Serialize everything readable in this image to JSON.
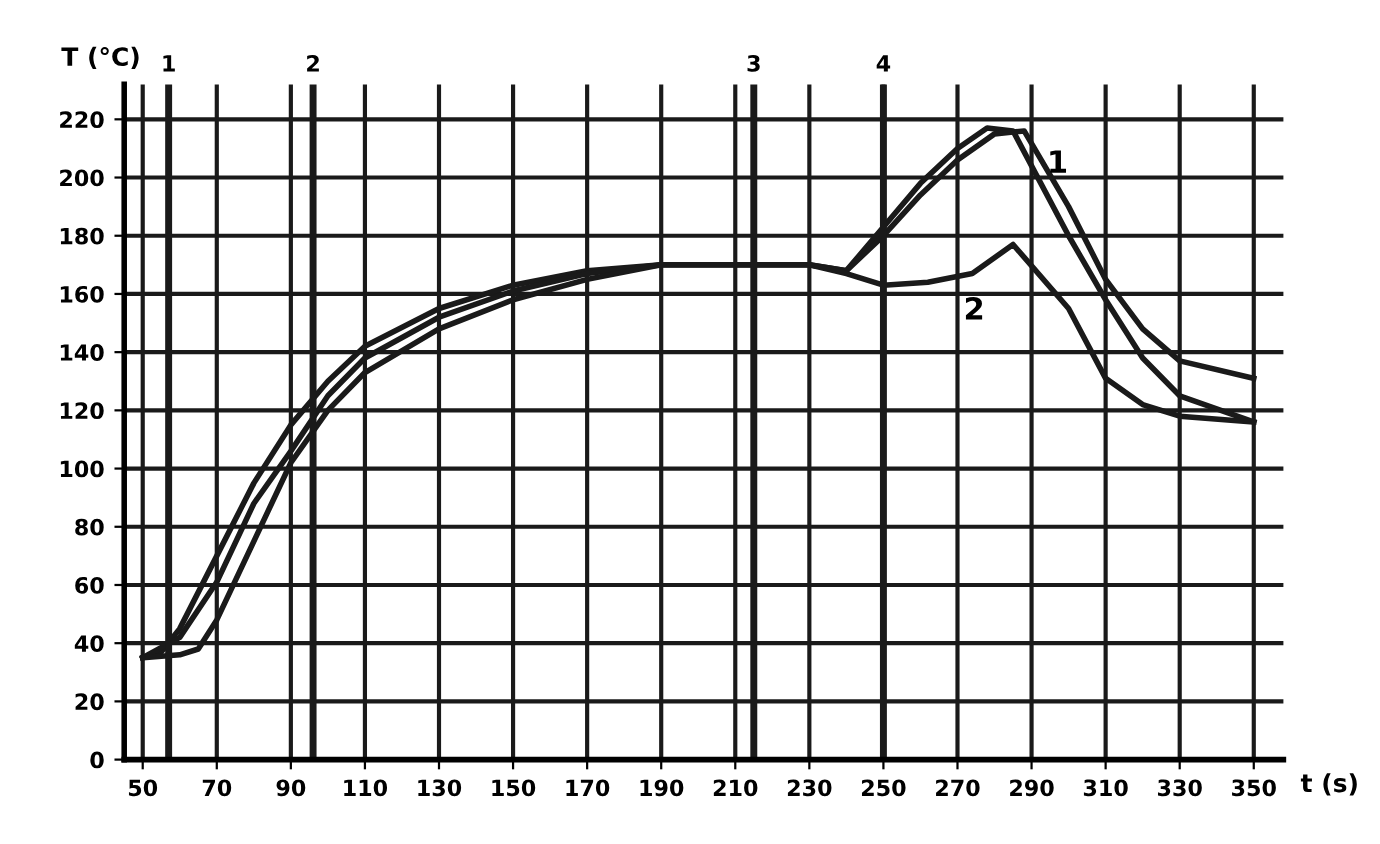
{
  "chart_data": {
    "type": "line",
    "xlabel": "t (s)",
    "ylabel": "T (°C)",
    "xlim": [
      45,
      358
    ],
    "ylim": [
      0,
      232
    ],
    "xticks": [
      50,
      70,
      90,
      110,
      130,
      150,
      170,
      190,
      210,
      230,
      250,
      270,
      290,
      310,
      330,
      350
    ],
    "yticks": [
      0,
      20,
      40,
      60,
      80,
      100,
      120,
      140,
      160,
      180,
      200,
      220
    ],
    "grid": true,
    "marker": "none",
    "line_style": "solid",
    "series": [
      {
        "color": "#1a1a1a",
        "x": [
          50,
          55,
          60,
          70,
          80,
          90,
          100,
          110,
          130,
          150,
          170,
          190,
          210,
          230,
          240,
          250,
          260,
          270,
          278,
          285,
          300,
          310,
          320,
          330,
          350
        ],
        "values": [
          35,
          37,
          45,
          70,
          95,
          115,
          130,
          142,
          155,
          163,
          168,
          170,
          170,
          170,
          168,
          183,
          198,
          210,
          217,
          216,
          180,
          158,
          138,
          125,
          116
        ]
      },
      {
        "color": "#1a1a1a",
        "x": [
          50,
          60,
          70,
          80,
          90,
          100,
          110,
          130,
          150,
          170,
          190,
          210,
          230,
          240,
          250,
          260,
          270,
          280,
          288,
          300,
          310,
          320,
          330,
          350
        ],
        "values": [
          35,
          42,
          61,
          88,
          106,
          125,
          138,
          152,
          161,
          167,
          170,
          170,
          170,
          168,
          180,
          194,
          206,
          215,
          216,
          190,
          165,
          148,
          137,
          131
        ]
      },
      {
        "color": "#1a1a1a",
        "x": [
          50,
          60,
          65,
          70,
          80,
          90,
          100,
          110,
          130,
          150,
          170,
          190,
          210,
          230,
          240,
          250,
          262,
          274,
          285,
          300,
          310,
          320,
          330,
          350
        ],
        "values": [
          35,
          36,
          38,
          48,
          75,
          102,
          120,
          133,
          148,
          158,
          165,
          170,
          170,
          170,
          167,
          163,
          164,
          167,
          177,
          155,
          131,
          122,
          118,
          116
        ]
      }
    ],
    "ref_lines": [
      {
        "axis": "x",
        "value": 57,
        "color": "#1a1a1a"
      },
      {
        "axis": "x",
        "value": 96,
        "color": "#1a1a1a"
      },
      {
        "axis": "x",
        "value": 215,
        "color": "#1a1a1a"
      },
      {
        "axis": "x",
        "value": 250,
        "color": "#1a1a1a"
      }
    ],
    "annotations": [
      {
        "text": "1",
        "x": 57,
        "y": 232
      },
      {
        "text": "2",
        "x": 96,
        "y": 232
      },
      {
        "text": "3",
        "x": 215,
        "y": 232
      },
      {
        "text": "4",
        "x": 250,
        "y": 232
      },
      {
        "text": "1",
        "x": 288,
        "y": 216
      },
      {
        "text": "2",
        "x": 285,
        "y": 177
      }
    ]
  }
}
